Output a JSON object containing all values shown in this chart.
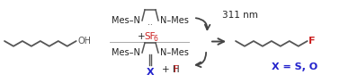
{
  "fig_width": 3.78,
  "fig_height": 0.93,
  "dpi": 100,
  "bg_color": "#ffffff",
  "chain_color": "#555555",
  "blue_color": "#2222cc",
  "red_color": "#cc2222",
  "black_color": "#222222",
  "arrow_color": "#444444",
  "nm_label": "311 nm",
  "oh_group": "OH",
  "f_atom": "F",
  "x_label": "X = S, O"
}
